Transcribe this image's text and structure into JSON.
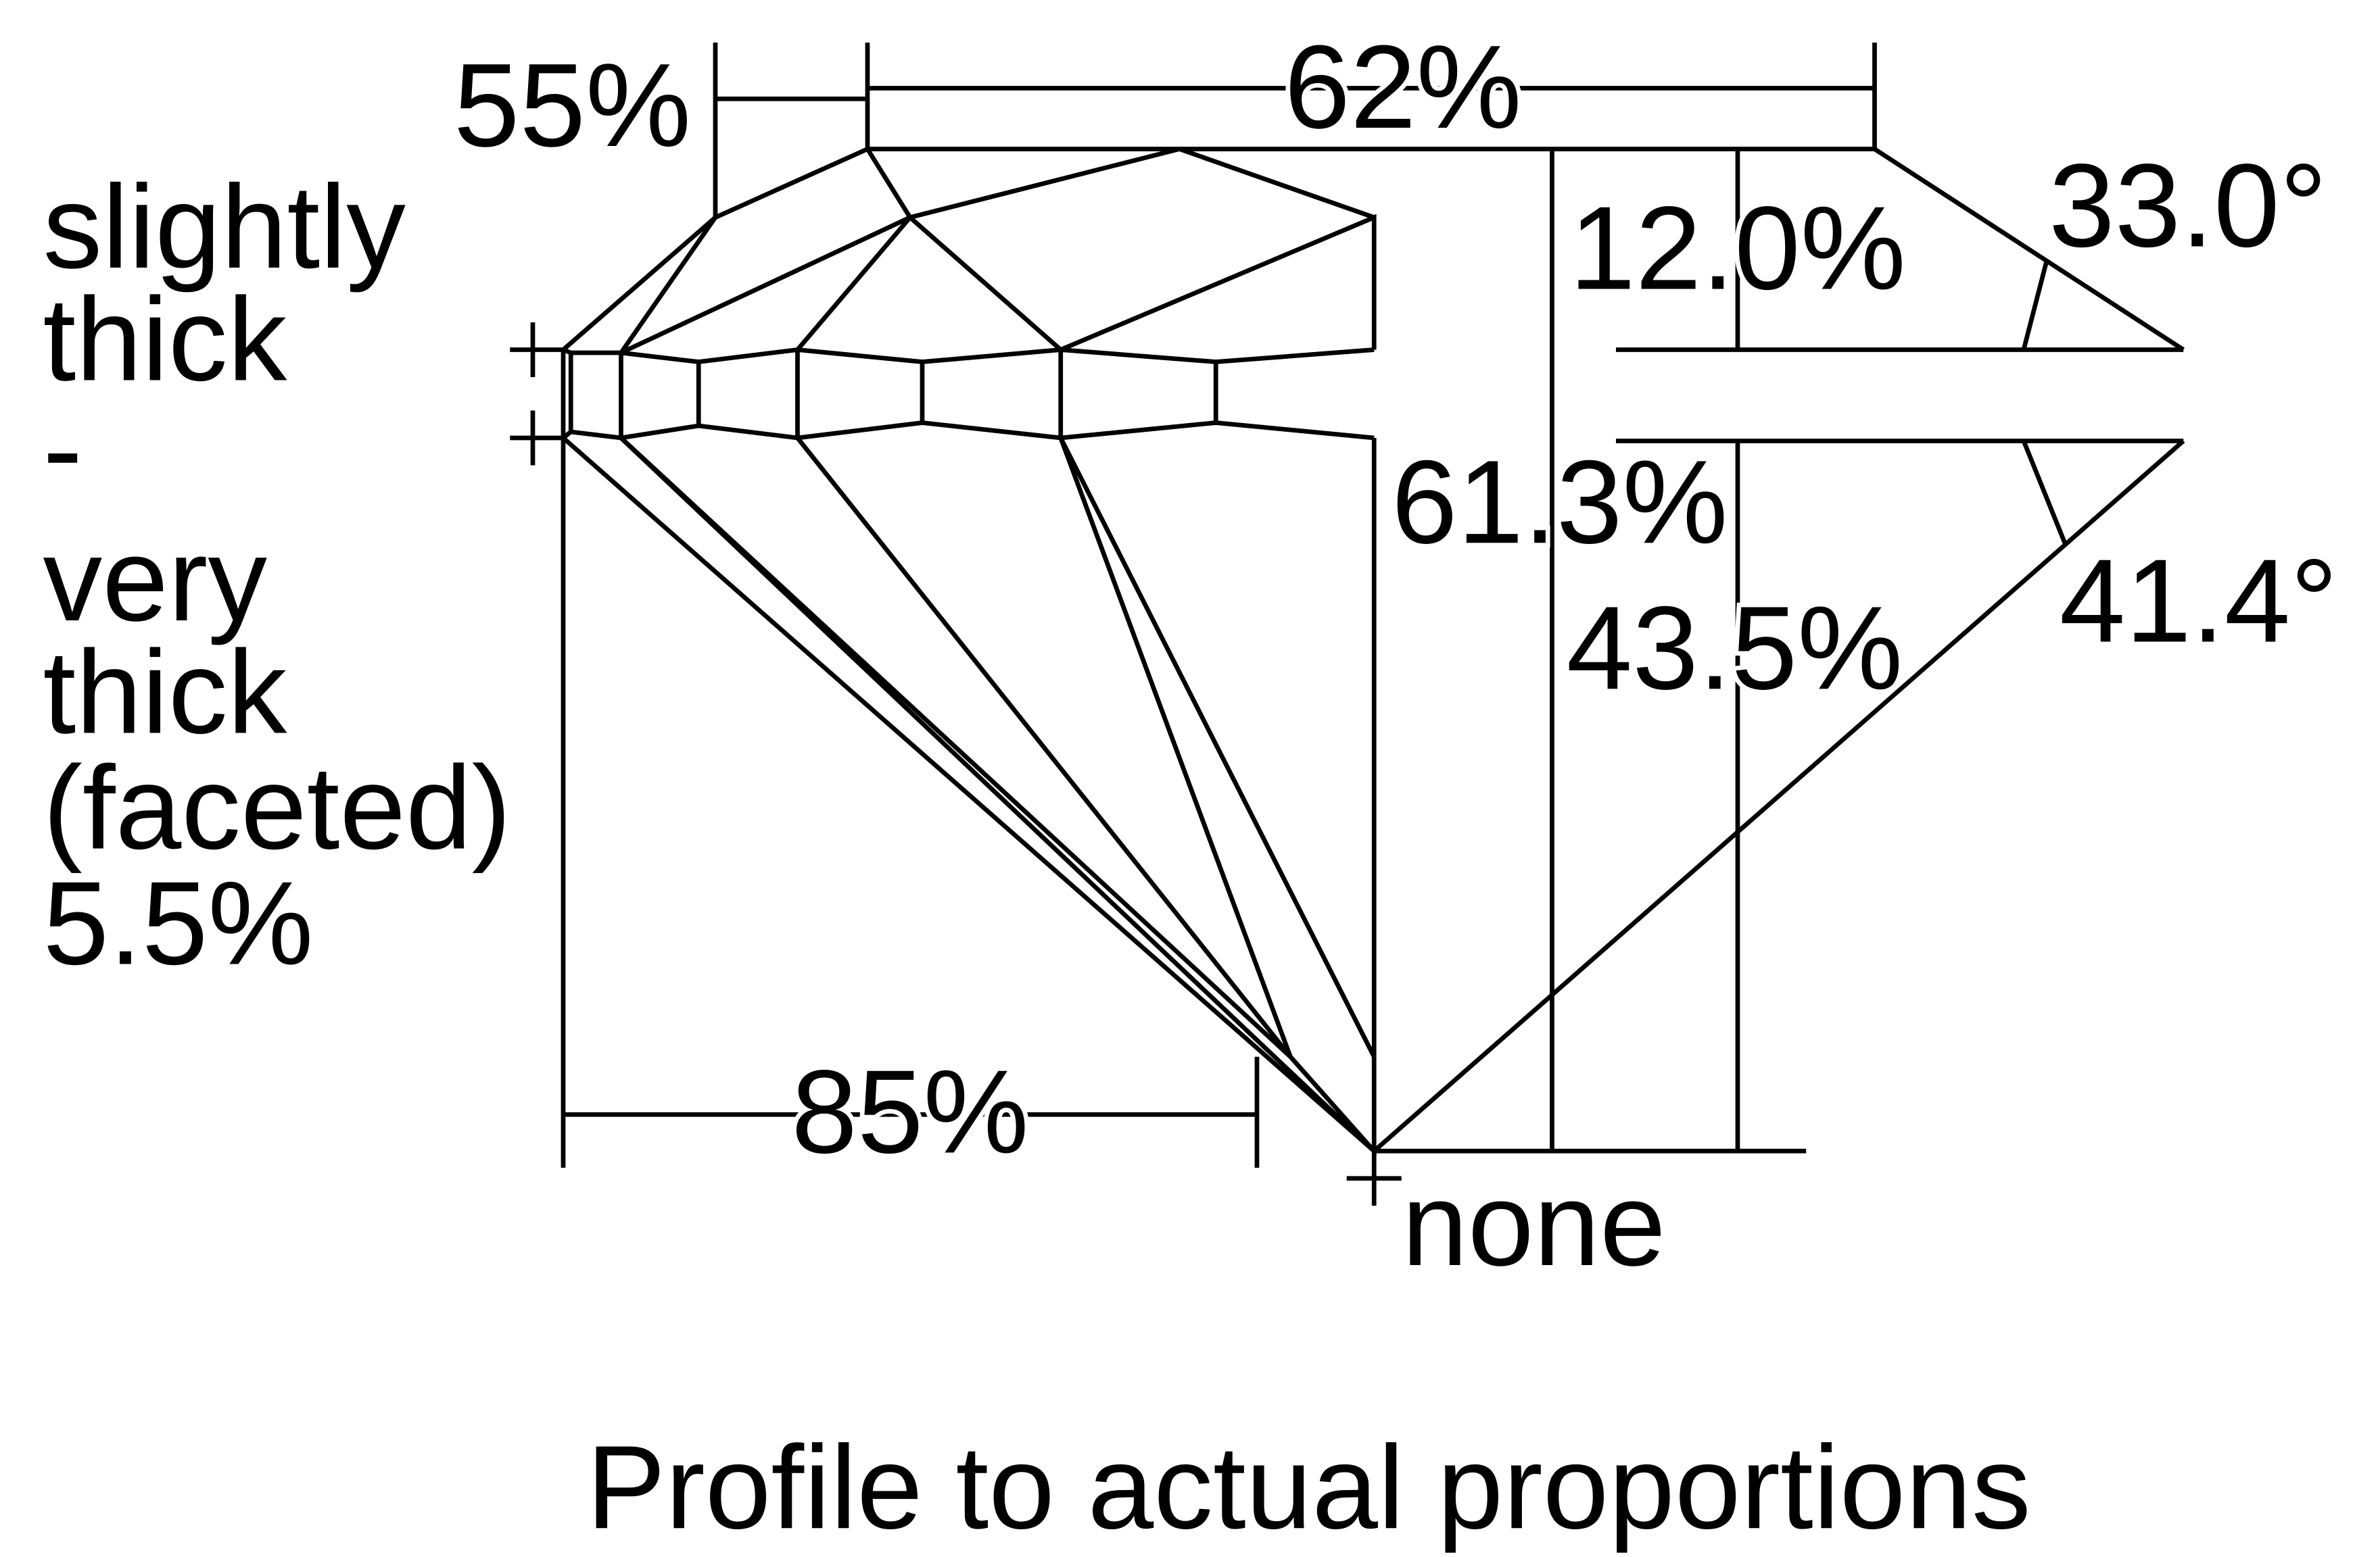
{
  "labels": {
    "star_length": "55%",
    "table": "62%",
    "crown_height": "12.0%",
    "crown_angle": "33.0°",
    "girdle": [
      "slightly",
      "thick",
      "-",
      "very",
      "thick",
      "(faceted)",
      "5.5%"
    ],
    "total_depth": "61.3%",
    "pavilion_depth": "43.5%",
    "pavilion_angle": "41.4°",
    "lower_half": "85%",
    "culet": "none"
  },
  "caption": "Profile to actual proportions"
}
